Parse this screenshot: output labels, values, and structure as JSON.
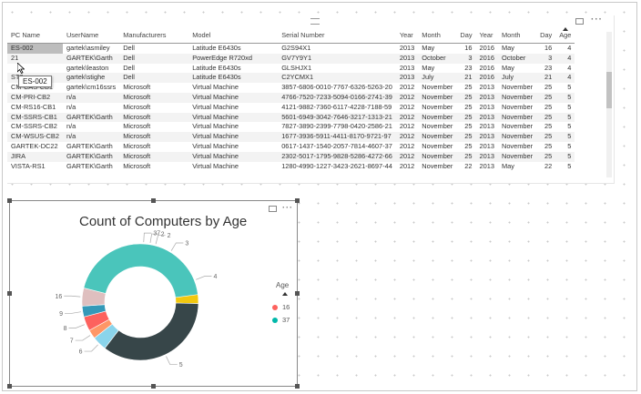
{
  "table": {
    "columns": [
      "PC Name",
      "UserName",
      "Manufacturers",
      "Model",
      "Serial Number",
      "Year",
      "Month",
      "Day",
      "Year",
      "Month",
      "Day",
      "Age"
    ],
    "rows": [
      [
        "ES-002",
        "gartek\\asmiley",
        "Dell",
        "Latitude E6430s",
        "G2S94X1",
        "2013",
        "May",
        "16",
        "2016",
        "May",
        "16",
        "4"
      ],
      [
        "21",
        "GARTEK\\Garth",
        "Dell",
        "PowerEdge R720xd",
        "GV7Y9Y1",
        "2013",
        "October",
        "3",
        "2016",
        "October",
        "3",
        "4"
      ],
      [
        "",
        "gartek\\leaston",
        "Dell",
        "Latitude E6430s",
        "GLSHJX1",
        "2013",
        "May",
        "23",
        "2016",
        "May",
        "23",
        "4"
      ],
      [
        "ST3",
        "gartek\\stighe",
        "Dell",
        "Latitude E6430s",
        "C2YCMX1",
        "2013",
        "July",
        "21",
        "2016",
        "July",
        "21",
        "4"
      ],
      [
        "CM-CAS-CB1",
        "gartek\\cm16ssrs",
        "Microsoft",
        "Virtual Machine",
        "3857-6806-0010-7767-6326-5263-20",
        "2012",
        "November",
        "25",
        "2013",
        "November",
        "25",
        "5"
      ],
      [
        "CM-PRI-CB2",
        "n/a",
        "Microsoft",
        "Virtual Machine",
        "4766-7520-7233-5094-0166-2741-39",
        "2012",
        "November",
        "25",
        "2013",
        "November",
        "25",
        "5"
      ],
      [
        "CM-RS16-CB1",
        "n/a",
        "Microsoft",
        "Virtual Machine",
        "4121-9882-7360-6117-4228-7188-59",
        "2012",
        "November",
        "25",
        "2013",
        "November",
        "25",
        "5"
      ],
      [
        "CM-SSRS-CB1",
        "GARTEK\\Garth",
        "Microsoft",
        "Virtual Machine",
        "5601-6949-3042-7646-3217-1313-21",
        "2012",
        "November",
        "25",
        "2013",
        "November",
        "25",
        "5"
      ],
      [
        "CM-SSRS-CB2",
        "n/a",
        "Microsoft",
        "Virtual Machine",
        "7827-3890-2399-7798-0420-2586-21",
        "2012",
        "November",
        "25",
        "2013",
        "November",
        "25",
        "5"
      ],
      [
        "CM-WSUS-CB2",
        "n/a",
        "Microsoft",
        "Virtual Machine",
        "1677-3936-5911-4411-8170-9721-97",
        "2012",
        "November",
        "25",
        "2013",
        "November",
        "25",
        "5"
      ],
      [
        "GARTEK-DC22",
        "GARTEK\\Garth",
        "Microsoft",
        "Virtual Machine",
        "0617-1437-1540-2057-7814-4607-37",
        "2012",
        "November",
        "25",
        "2013",
        "November",
        "25",
        "5"
      ],
      [
        "JIRA",
        "GARTEK\\Garth",
        "Microsoft",
        "Virtual Machine",
        "2302-5017-1795-9828-5286-4272-66",
        "2012",
        "November",
        "25",
        "2013",
        "November",
        "25",
        "5"
      ],
      [
        "VISTA-RS1",
        "GARTEK\\Garth",
        "Microsoft",
        "Virtual Machine",
        "1280-4990-1227-3423-2621-8697-44",
        "2012",
        "November",
        "22",
        "2013",
        "May",
        "22",
        "5"
      ]
    ],
    "tooltip": "ES-002",
    "selected_cell": "ES-002"
  },
  "visual_icons": [
    "focus-mode-icon",
    "more-options-icon"
  ],
  "chart_data": {
    "type": "pie",
    "title": "Count of Computers by Age",
    "variant": "donut",
    "slices": [
      {
        "label": "2",
        "value": 2,
        "color": "#01B8AA"
      },
      {
        "label": "2",
        "value": 2,
        "color": "#A66999"
      },
      {
        "label": "3",
        "value": 3,
        "color": "#5F6B6D"
      },
      {
        "label": "4",
        "value": 4,
        "color": "#F2C80F"
      },
      {
        "label": "5",
        "value": 5,
        "color": "#374649"
      },
      {
        "label": "6",
        "value": 6,
        "color": "#8AD4EB"
      },
      {
        "label": "7",
        "value": 7,
        "color": "#FE9666"
      },
      {
        "label": "8",
        "value": 8,
        "color": "#FD625E"
      },
      {
        "label": "9",
        "value": 9,
        "color": "#3599B8"
      },
      {
        "label": "16",
        "value": 16,
        "color": "#DFBFBF"
      },
      {
        "label": "37",
        "value": 37,
        "color": "#4AC5BB"
      }
    ],
    "display_fractions": [
      0.015,
      0.015,
      0.075,
      0.13,
      0.35,
      0.04,
      0.025,
      0.04,
      0.03,
      0.05,
      0.44
    ],
    "legend": {
      "title": "Age",
      "placement": "right",
      "items": [
        {
          "label": "16",
          "color": "#FD625E"
        },
        {
          "label": "37",
          "color": "#01B8AA"
        }
      ]
    }
  }
}
